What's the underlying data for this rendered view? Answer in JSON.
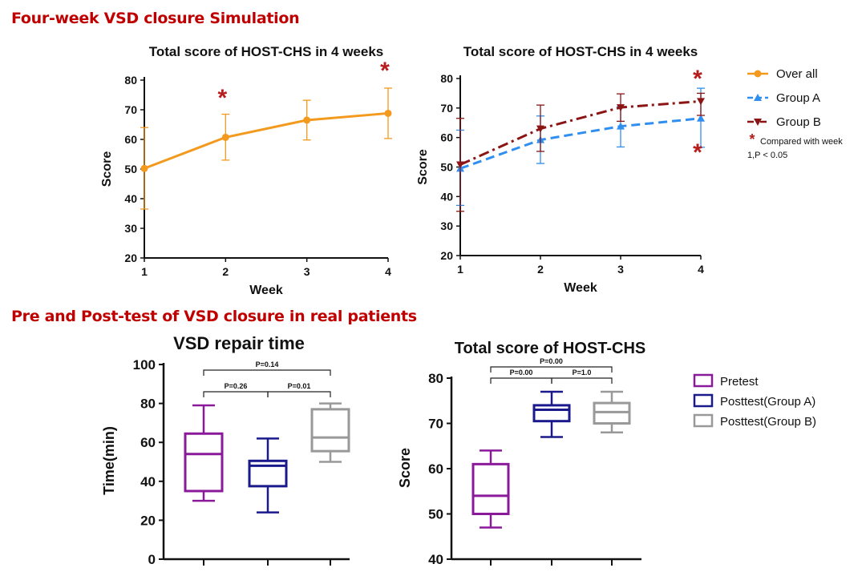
{
  "section_titles": {
    "simulation": "Four-week VSD closure Simulation",
    "real_patients": "Pre and Post-test of VSD closure in real patients"
  },
  "colors": {
    "section_title": "#c00000",
    "overall": "#f39a1e",
    "group_a": "#2f8ff0",
    "group_b": "#8b1414",
    "asterisk": "#b71c1c",
    "pretest": "#8b1a9b",
    "posttest_a": "#1a1a8c",
    "posttest_b": "#999999"
  },
  "chart_data": [
    {
      "id": "overall",
      "type": "line",
      "title": "Total score of HOST-CHS  in 4 weeks",
      "xlabel": "Week",
      "ylabel": "Score",
      "x": [
        1,
        2,
        3,
        4
      ],
      "xlim": [
        1,
        4
      ],
      "ylim": [
        20,
        80
      ],
      "yticks": [
        20,
        30,
        40,
        50,
        60,
        70,
        80
      ],
      "series": [
        {
          "name": "Over all",
          "values": [
            50.2,
            60.7,
            66.5,
            68.8
          ],
          "err_low": [
            36.5,
            53,
            59.8,
            60.3
          ],
          "err_high": [
            64,
            68.5,
            73.2,
            77.3
          ]
        }
      ],
      "annotations": [
        {
          "x": 2,
          "text": "*"
        },
        {
          "x": 4,
          "text": "*"
        }
      ]
    },
    {
      "id": "groups",
      "type": "line",
      "title": "Total score of HOST-CHS  in 4 weeks",
      "xlabel": "Week",
      "ylabel": "Score",
      "x": [
        1,
        2,
        3,
        4
      ],
      "xlim": [
        1,
        4
      ],
      "ylim": [
        20,
        80
      ],
      "yticks": [
        20,
        30,
        40,
        50,
        60,
        70,
        80
      ],
      "series": [
        {
          "name": "Group A",
          "values": [
            49.5,
            59.2,
            63.8,
            66.5
          ],
          "err_low": [
            37,
            51.2,
            56.8,
            56.7
          ],
          "err_high": [
            62.5,
            67.3,
            70.5,
            76.7
          ]
        },
        {
          "name": "Group B",
          "values": [
            50.8,
            63,
            70.2,
            72.3
          ],
          "err_low": [
            35,
            55.3,
            65.5,
            67.5
          ],
          "err_high": [
            66.5,
            71,
            74.8,
            75
          ]
        }
      ],
      "annotations": [
        {
          "x": 4,
          "text": "*",
          "position": "above"
        },
        {
          "x": 4,
          "text": "*",
          "position": "below"
        }
      ],
      "legend": {
        "entries": [
          "Over all",
          "Group A",
          "Group B"
        ],
        "note_star": "*",
        "note_line1": "Compared with week",
        "note_line2": "1,P < 0.05"
      }
    },
    {
      "id": "repair_time",
      "type": "box",
      "title": "VSD repair time",
      "xlabel": "",
      "ylabel": "Time(min)",
      "ylim": [
        0,
        100
      ],
      "yticks": [
        0,
        20,
        40,
        60,
        80,
        100
      ],
      "boxes": [
        {
          "name": "Pretest",
          "min": 30,
          "q1": 35,
          "median": 54,
          "q3": 64.5,
          "max": 79
        },
        {
          "name": "Posttest(Group A)",
          "min": 24,
          "q1": 37.5,
          "median": 48,
          "q3": 50.5,
          "max": 62
        },
        {
          "name": "Posttest(Group B)",
          "min": 50,
          "q1": 55.5,
          "median": 62.5,
          "q3": 77,
          "max": 80
        }
      ],
      "comparisons": [
        {
          "from": 0,
          "to": 1,
          "text": "P=0.26",
          "level": 1
        },
        {
          "from": 1,
          "to": 2,
          "text": "P=0.01",
          "level": 1
        },
        {
          "from": 0,
          "to": 2,
          "text": "P=0.14",
          "level": 2
        }
      ]
    },
    {
      "id": "host_score",
      "type": "box",
      "title": "Total score of HOST-CHS",
      "xlabel": "",
      "ylabel": "Score",
      "ylim": [
        40,
        80
      ],
      "yticks": [
        40,
        50,
        60,
        70,
        80
      ],
      "boxes": [
        {
          "name": "Pretest",
          "min": 47,
          "q1": 50,
          "median": 54,
          "q3": 61,
          "max": 64
        },
        {
          "name": "Posttest(Group A)",
          "min": 67,
          "q1": 70.5,
          "median": 73,
          "q3": 74,
          "max": 77
        },
        {
          "name": "Posttest(Group B)",
          "min": 68,
          "q1": 70,
          "median": 72.5,
          "q3": 74.5,
          "max": 77
        }
      ],
      "comparisons": [
        {
          "from": 0,
          "to": 1,
          "text": "P=0.00",
          "level": 1
        },
        {
          "from": 1,
          "to": 2,
          "text": "P=1.0",
          "level": 1
        },
        {
          "from": 0,
          "to": 2,
          "text": "P=0.00",
          "level": 2
        }
      ],
      "legend": {
        "entries": [
          "Pretest",
          "Posttest(Group A)",
          "Posttest(Group B)"
        ]
      }
    }
  ]
}
